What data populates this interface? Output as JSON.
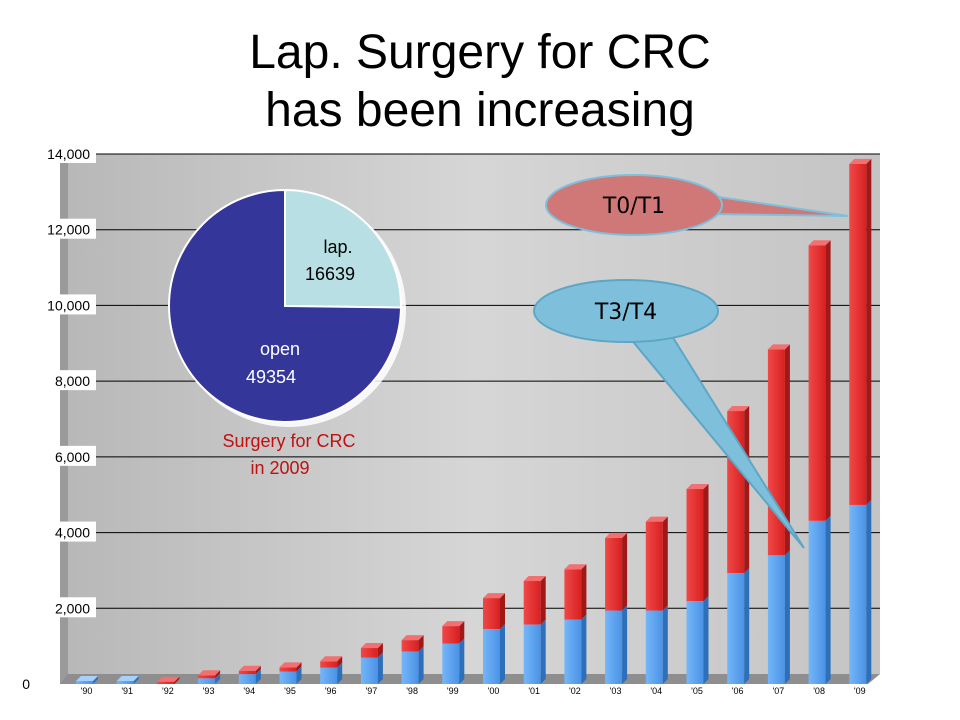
{
  "title": {
    "line1": "Lap. Surgery for CRC",
    "line2": "has been increasing"
  },
  "chart_data": [
    {
      "type": "bar",
      "stacked": true,
      "categories": [
        "'90",
        "'91",
        "'92",
        "'93",
        "'94",
        "'95",
        "'96",
        "'97",
        "'98",
        "'99",
        "'00",
        "'01",
        "'02",
        "'03",
        "'04",
        "'05",
        "'06",
        "'07",
        "'08",
        "'09"
      ],
      "series": [
        {
          "color": "#5ba3f0",
          "values": [
            80,
            80,
            0,
            150,
            260,
            330,
            430,
            700,
            860,
            1070,
            1450,
            1570,
            1700,
            1940,
            1940,
            2190,
            2930,
            3400,
            4310,
            4730
          ]
        },
        {
          "color": "#e03030",
          "values": [
            0,
            0,
            60,
            80,
            90,
            110,
            170,
            250,
            300,
            460,
            820,
            1150,
            1330,
            1920,
            2350,
            2960,
            4280,
            5440,
            7280,
            9010
          ]
        }
      ],
      "yticks": [
        "0",
        "2,000",
        "4,000",
        "6,000",
        "8,000",
        "10,000",
        "12,000",
        "14,000"
      ],
      "ylim": [
        0,
        14000
      ],
      "grid": true,
      "annotations": [
        {
          "text": "T0/T1",
          "color": "#d07878"
        },
        {
          "text": "T3/T4",
          "color": "#7ec0dc"
        }
      ]
    },
    {
      "type": "pie",
      "slices": [
        {
          "name": "lap.",
          "value": 16639,
          "color": "#b8e0e4"
        },
        {
          "name": "open",
          "value": 49354,
          "color": "#34369a"
        }
      ],
      "caption_line1": "Surgery for CRC",
      "caption_line2": "in 2009"
    }
  ]
}
